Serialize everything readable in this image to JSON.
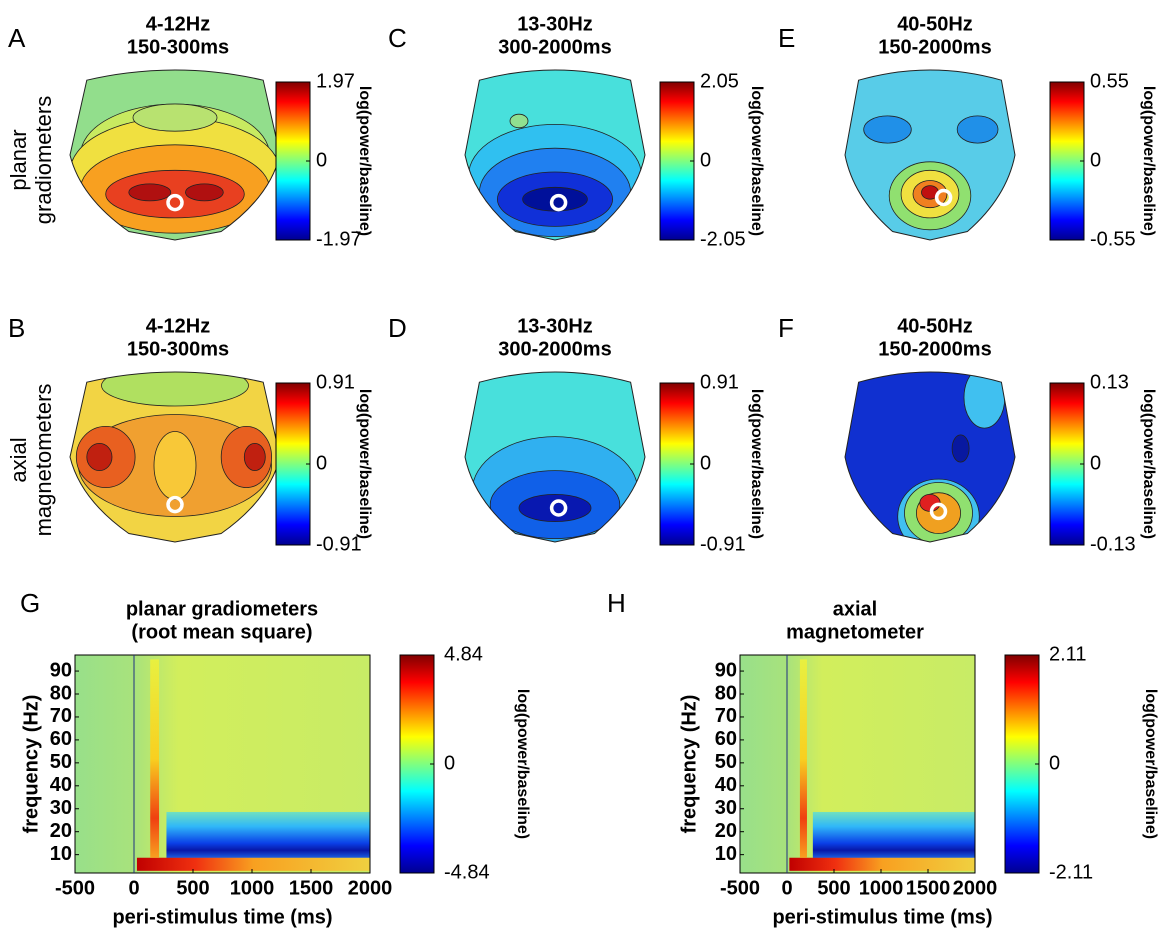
{
  "rows": [
    {
      "label": [
        "planar",
        "gradiometers"
      ]
    },
    {
      "label": [
        "axial",
        "magnetometers"
      ]
    }
  ],
  "topoplots": [
    {
      "letter": "A",
      "title": [
        "4-12Hz",
        "150-300ms"
      ],
      "clim": [
        -1.97,
        1.97
      ],
      "cticks": [
        -1.97,
        0,
        1.97
      ],
      "colorbar_label": "log(power/baseline)"
    },
    {
      "letter": "C",
      "title": [
        "13-30Hz",
        "300-2000ms"
      ],
      "clim": [
        -2.05,
        2.05
      ],
      "cticks": [
        -2.05,
        0,
        2.05
      ],
      "colorbar_label": "log(power/baseline)"
    },
    {
      "letter": "E",
      "title": [
        "40-50Hz",
        "150-2000ms"
      ],
      "clim": [
        -0.55,
        0.55
      ],
      "cticks": [
        -0.55,
        0,
        0.55
      ],
      "colorbar_label": "log(power/baseline)"
    },
    {
      "letter": "B",
      "title": [
        "4-12Hz",
        "150-300ms"
      ],
      "clim": [
        -0.91,
        0.91
      ],
      "cticks": [
        -0.91,
        0,
        0.91
      ],
      "colorbar_label": "log(power/baseline)"
    },
    {
      "letter": "D",
      "title": [
        "13-30Hz",
        "300-2000ms"
      ],
      "clim": [
        -0.91,
        0.91
      ],
      "cticks": [
        -0.91,
        0,
        0.91
      ],
      "colorbar_label": "log(power/baseline)"
    },
    {
      "letter": "F",
      "title": [
        "40-50Hz",
        "150-2000ms"
      ],
      "clim": [
        -0.13,
        0.13
      ],
      "cticks": [
        -0.13,
        0,
        0.13
      ],
      "colorbar_label": "log(power/baseline)"
    }
  ],
  "tf_plots": [
    {
      "letter": "G",
      "title": [
        "planar gradiometers",
        "(root mean square)"
      ],
      "xlabel": "peri-stimulus time (ms)",
      "ylabel": "frequency (Hz)",
      "xlim": [
        -500,
        2000
      ],
      "xticks": [
        -500,
        0,
        500,
        1000,
        1500,
        2000
      ],
      "ylim": [
        2,
        97
      ],
      "yticks": [
        10,
        20,
        30,
        40,
        50,
        60,
        70,
        80,
        90
      ],
      "clim": [
        -4.84,
        4.84
      ],
      "cticks": [
        -4.84,
        0,
        4.84
      ],
      "colorbar_label": "log(power/baseline)"
    },
    {
      "letter": "H",
      "title": [
        "axial",
        "magnetometer"
      ],
      "xlabel": "peri-stimulus time (ms)",
      "ylabel": "frequency (Hz)",
      "xlim": [
        -500,
        2000
      ],
      "xticks": [
        -500,
        0,
        500,
        1000,
        1500,
        2000
      ],
      "ylim": [
        2,
        97
      ],
      "yticks": [
        10,
        20,
        30,
        40,
        50,
        60,
        70,
        80,
        90
      ],
      "clim": [
        -2.11,
        2.11
      ],
      "cticks": [
        -2.11,
        0,
        2.11
      ],
      "colorbar_label": "log(power/baseline)"
    }
  ]
}
